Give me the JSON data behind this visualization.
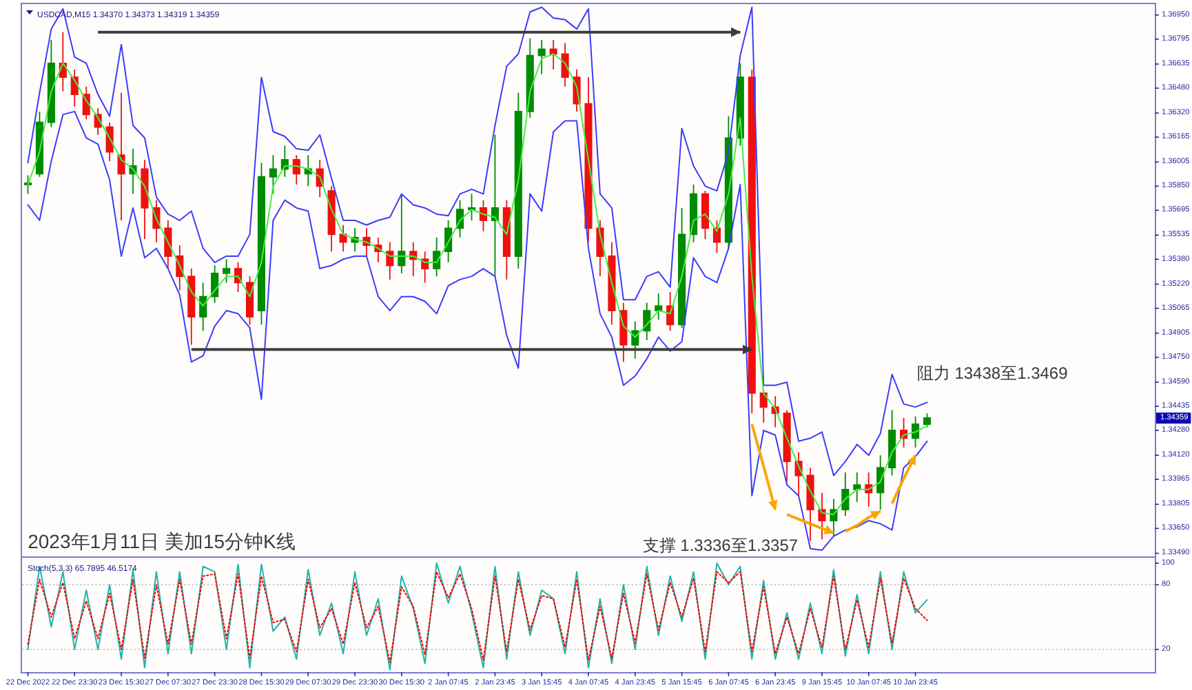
{
  "chart_data": [
    {
      "type": "candlestick",
      "title": "USDCAD,M15 1.34370 1.34373 1.34319 1.34359",
      "annotations": [
        "2023年1月11日 美加15分钟K线",
        "支撑 1.3336至1.3357",
        "阻力 13438至1.3469",
        {
          "text": "1.34359",
          "y": 1.34359
        }
      ],
      "categories": [
        null,
        null,
        null,
        null,
        null,
        null,
        null,
        null,
        null,
        null,
        null,
        null,
        null,
        null,
        null,
        null,
        null,
        null,
        null,
        null,
        null,
        null,
        null,
        null,
        null,
        null,
        null,
        null,
        null,
        null,
        null,
        null,
        null,
        null,
        null,
        null,
        null,
        null,
        null,
        null,
        null,
        null,
        null,
        null,
        null,
        null,
        null,
        null,
        null,
        null,
        null,
        null,
        null,
        null,
        null,
        null,
        null,
        null,
        null,
        null,
        null,
        null,
        null,
        null,
        null,
        null,
        null,
        null,
        null,
        null,
        null,
        null,
        null,
        null,
        null,
        null,
        null,
        null,
        null,
        null,
        null,
        null,
        null,
        null,
        null,
        null,
        null,
        null,
        null,
        null,
        null,
        null,
        null,
        null,
        null,
        null,
        null
      ],
      "ohlc": [
        [
          1.3586,
          1.3592,
          1.358,
          1.3587
        ],
        [
          1.3593,
          1.3633,
          1.3591,
          1.3626
        ],
        [
          1.3626,
          1.3679,
          1.3623,
          1.3664
        ],
        [
          1.3664,
          1.3684,
          1.3646,
          1.3655
        ],
        [
          1.3655,
          1.366,
          1.3636,
          1.3644
        ],
        [
          1.3644,
          1.3649,
          1.3628,
          1.3631
        ],
        [
          1.3631,
          1.3635,
          1.3618,
          1.3623
        ],
        [
          1.3623,
          1.3626,
          1.3601,
          1.3607
        ],
        [
          1.3605,
          1.3645,
          1.3563,
          1.3593
        ],
        [
          1.3593,
          1.3609,
          1.358,
          1.3598
        ],
        [
          1.3596,
          1.3602,
          1.3551,
          1.3571
        ],
        [
          1.3571,
          1.3576,
          1.3549,
          1.3558
        ],
        [
          1.3558,
          1.3563,
          1.3532,
          1.354
        ],
        [
          1.354,
          1.3547,
          1.3518,
          1.3527
        ],
        [
          1.3527,
          1.3532,
          1.3483,
          1.3501
        ],
        [
          1.3501,
          1.3523,
          1.3492,
          1.3514
        ],
        [
          1.3514,
          1.3534,
          1.351,
          1.3529
        ],
        [
          1.3529,
          1.3538,
          1.3523,
          1.3532
        ],
        [
          1.3532,
          1.3536,
          1.3517,
          1.3523
        ],
        [
          1.3523,
          1.3527,
          1.3496,
          1.3501
        ],
        [
          1.3505,
          1.36,
          1.3496,
          1.3591
        ],
        [
          1.3591,
          1.3605,
          1.358,
          1.3596
        ],
        [
          1.3596,
          1.3611,
          1.3591,
          1.3602
        ],
        [
          1.3602,
          1.3605,
          1.3586,
          1.3593
        ],
        [
          1.3593,
          1.3605,
          1.3585,
          1.3596
        ],
        [
          1.3596,
          1.3602,
          1.3578,
          1.3585
        ],
        [
          1.3582,
          1.3585,
          1.3543,
          1.3554
        ],
        [
          1.3554,
          1.356,
          1.3543,
          1.3549
        ],
        [
          1.3549,
          1.3558,
          1.3543,
          1.3552
        ],
        [
          1.3552,
          1.3558,
          1.354,
          1.3547
        ],
        [
          1.3547,
          1.3552,
          1.3536,
          1.3543
        ],
        [
          1.3543,
          1.3549,
          1.3525,
          1.3534
        ],
        [
          1.3534,
          1.358,
          1.3529,
          1.3543
        ],
        [
          1.3543,
          1.3549,
          1.3527,
          1.3538
        ],
        [
          1.3538,
          1.3543,
          1.3523,
          1.3532
        ],
        [
          1.3532,
          1.3552,
          1.3527,
          1.3543
        ],
        [
          1.3543,
          1.3563,
          1.3536,
          1.3558
        ],
        [
          1.3558,
          1.3576,
          1.3552,
          1.357
        ],
        [
          1.357,
          1.358,
          1.3563,
          1.3571
        ],
        [
          1.3571,
          1.3576,
          1.3556,
          1.3563
        ],
        [
          1.3563,
          1.3618,
          1.3527,
          1.3571
        ],
        [
          1.3571,
          1.3576,
          1.3525,
          1.354
        ],
        [
          1.354,
          1.3645,
          1.3532,
          1.3633
        ],
        [
          1.3633,
          1.368,
          1.3629,
          1.3669
        ],
        [
          1.3669,
          1.3679,
          1.3657,
          1.3673
        ],
        [
          1.3673,
          1.3679,
          1.366,
          1.367
        ],
        [
          1.367,
          1.3677,
          1.3649,
          1.3655
        ],
        [
          1.3655,
          1.366,
          1.3633,
          1.3638
        ],
        [
          1.3638,
          1.3655,
          1.3549,
          1.3558
        ],
        [
          1.3558,
          1.3563,
          1.3527,
          1.354
        ],
        [
          1.354,
          1.3549,
          1.3496,
          1.3505
        ],
        [
          1.3505,
          1.351,
          1.3472,
          1.3483
        ],
        [
          1.3483,
          1.3498,
          1.3474,
          1.3492
        ],
        [
          1.3492,
          1.351,
          1.3486,
          1.3505
        ],
        [
          1.3505,
          1.3516,
          1.3499,
          1.3508
        ],
        [
          1.3508,
          1.3517,
          1.3492,
          1.3496
        ],
        [
          1.3496,
          1.3571,
          1.3494,
          1.3554
        ],
        [
          1.3554,
          1.3586,
          1.3549,
          1.358
        ],
        [
          1.358,
          1.3582,
          1.3551,
          1.3558
        ],
        [
          1.3558,
          1.3563,
          1.3542,
          1.3549
        ],
        [
          1.3549,
          1.363,
          1.3545,
          1.3616
        ],
        [
          1.3616,
          1.3664,
          1.3611,
          1.3655
        ],
        [
          1.3655,
          1.366,
          1.3439,
          1.3452
        ],
        [
          1.3452,
          1.3454,
          1.3433,
          1.3443
        ],
        [
          1.3443,
          1.345,
          1.343,
          1.3439
        ],
        [
          1.3439,
          1.3441,
          1.3395,
          1.3408
        ],
        [
          1.3408,
          1.3414,
          1.3386,
          1.3399
        ],
        [
          1.3399,
          1.3404,
          1.3357,
          1.3377
        ],
        [
          1.3377,
          1.3388,
          1.3358,
          1.337
        ],
        [
          1.337,
          1.3384,
          1.336,
          1.3377
        ],
        [
          1.3377,
          1.3401,
          1.3373,
          1.339
        ],
        [
          1.339,
          1.3401,
          1.3382,
          1.3393
        ],
        [
          1.3393,
          1.3401,
          1.3379,
          1.3388
        ],
        [
          1.3388,
          1.3412,
          1.3377,
          1.3404
        ],
        [
          1.3404,
          1.3441,
          1.3399,
          1.3428
        ],
        [
          1.3428,
          1.3436,
          1.3417,
          1.3423
        ],
        [
          1.3423,
          1.3437,
          1.3417,
          1.3432
        ],
        [
          1.3432,
          1.3439,
          1.343,
          1.3436
        ],
        null,
        null,
        null,
        null,
        null,
        null,
        null,
        null,
        null,
        null,
        null,
        null,
        null,
        null,
        null,
        null,
        null,
        null,
        null
      ],
      "colors": [
        "#008c00",
        "#008c00",
        "#008c00",
        "#f01010",
        "#f01010",
        "#f01010",
        "#f01010",
        "#f01010",
        "#f01010",
        "#008c00",
        "#f01010",
        "#f01010",
        "#f01010",
        "#f01010",
        "#f01010",
        "#008c00",
        "#008c00",
        "#008c00",
        "#f01010",
        "#f01010",
        "#008c00",
        "#008c00",
        "#008c00",
        "#f01010",
        "#008c00",
        "#f01010",
        "#f01010",
        "#f01010",
        "#008c00",
        "#f01010",
        "#f01010",
        "#f01010",
        "#008c00",
        "#f01010",
        "#f01010",
        "#008c00",
        "#008c00",
        "#008c00",
        "#008c00",
        "#f01010",
        "#008c00",
        "#f01010",
        "#008c00",
        "#008c00",
        "#008c00",
        "#f01010",
        "#f01010",
        "#f01010",
        "#f01010",
        "#f01010",
        "#f01010",
        "#f01010",
        "#008c00",
        "#008c00",
        "#008c00",
        "#f01010",
        "#008c00",
        "#008c00",
        "#f01010",
        "#f01010",
        "#008c00",
        "#008c00",
        "#f01010",
        "#f01010",
        "#f01010",
        "#f01010",
        "#f01010",
        "#f01010",
        "#f01010",
        "#008c00",
        "#008c00",
        "#008c00",
        "#f01010",
        "#008c00",
        "#008c00",
        "#f01010",
        "#008c00",
        "#008c00",
        null,
        null,
        null,
        null,
        null,
        null,
        null,
        null,
        null,
        null,
        null,
        null,
        null,
        null,
        null,
        null,
        null,
        null,
        null
      ],
      "series": [
        {
          "type": "line",
          "color": "#3b3bff",
          "values": [
            1.36,
            1.3645,
            1.3686,
            1.3699,
            1.3668,
            1.3664,
            1.3644,
            1.363,
            1.3676,
            1.3624,
            1.3616,
            1.3578,
            1.3567,
            1.3563,
            1.3569,
            1.3545,
            1.3536,
            1.354,
            1.354,
            1.3554,
            1.3655,
            1.362,
            1.3617,
            1.3609,
            1.3608,
            1.3618,
            1.359,
            1.3563,
            1.3563,
            1.356,
            1.3563,
            1.3565,
            1.358,
            1.3573,
            1.3571,
            1.3567,
            1.3566,
            1.358,
            1.3583,
            1.358,
            1.3624,
            1.3662,
            1.367,
            1.3697,
            1.37,
            1.3693,
            1.3692,
            1.3686,
            1.3699,
            1.358,
            1.3571,
            1.3512,
            1.3512,
            1.3527,
            1.353,
            1.352,
            1.3622,
            1.3598,
            1.3585,
            1.3582,
            1.3607,
            1.3669,
            1.37,
            1.3457,
            1.3457,
            1.3459,
            1.3421,
            1.3423,
            1.3427,
            1.3399,
            1.3408,
            1.3419,
            1.3412,
            1.3426,
            1.3464,
            1.3445,
            1.3443,
            1.3446,
            null,
            null,
            null,
            null,
            null,
            null,
            null,
            null,
            null,
            null,
            null,
            null,
            null,
            null,
            null,
            null,
            null,
            null,
            null
          ]
        },
        {
          "type": "line",
          "color": "#3b3bff",
          "values": [
            1.3573,
            1.3563,
            1.3601,
            1.3631,
            1.3633,
            1.3616,
            1.3612,
            1.3589,
            1.354,
            1.3571,
            1.3539,
            1.3545,
            1.3532,
            1.3515,
            1.3472,
            1.3476,
            1.3495,
            1.3505,
            1.3503,
            1.3494,
            1.3448,
            1.3563,
            1.3576,
            1.3571,
            1.3569,
            1.3532,
            1.3534,
            1.3538,
            1.354,
            1.354,
            1.3514,
            1.3505,
            1.3514,
            1.3514,
            1.3511,
            1.3503,
            1.3521,
            1.3525,
            1.3527,
            1.3532,
            1.3527,
            1.3489,
            1.3468,
            1.358,
            1.3569,
            1.362,
            1.3627,
            1.3627,
            1.3545,
            1.3503,
            1.3488,
            1.3457,
            1.3463,
            1.3474,
            1.3488,
            1.3479,
            1.3485,
            1.3539,
            1.3527,
            1.3523,
            1.3545,
            1.3586,
            1.3386,
            1.3428,
            1.3425,
            1.3393,
            1.3386,
            1.3352,
            1.3351,
            1.336,
            1.3364,
            1.3366,
            1.337,
            1.3368,
            1.3364,
            1.3404,
            1.3411,
            1.3421,
            null,
            null,
            null,
            null,
            null,
            null,
            null,
            null,
            null,
            null,
            null,
            null,
            null,
            null,
            null,
            null,
            null,
            null,
            null
          ]
        },
        {
          "type": "line",
          "color": "#44ee44",
          "values": [
            1.3586,
            1.3607,
            1.3646,
            1.3664,
            1.3653,
            1.364,
            1.3629,
            1.3616,
            1.3602,
            1.3596,
            1.3585,
            1.3564,
            1.3549,
            1.3534,
            1.3517,
            1.3508,
            1.3518,
            1.3527,
            1.3527,
            1.3514,
            1.3536,
            1.3585,
            1.3598,
            1.3598,
            1.3596,
            1.3591,
            1.357,
            1.3554,
            1.3551,
            1.3549,
            1.3545,
            1.354,
            1.354,
            1.354,
            1.3536,
            1.3536,
            1.3549,
            1.3563,
            1.357,
            1.3567,
            1.3565,
            1.3554,
            1.3589,
            1.3646,
            1.3667,
            1.367,
            1.3664,
            1.3649,
            1.3602,
            1.3554,
            1.3523,
            1.3495,
            1.3488,
            1.3496,
            1.3505,
            1.3503,
            1.3527,
            1.3563,
            1.3567,
            1.3556,
            1.358,
            1.3629,
            1.3527,
            1.3452,
            1.3442,
            1.3423,
            1.3405,
            1.3389,
            1.3375,
            1.3374,
            1.3384,
            1.339,
            1.339,
            1.3395,
            1.3414,
            1.3425,
            1.3427,
            1.3431,
            null,
            null,
            null,
            null,
            null,
            null,
            null,
            null,
            null,
            null,
            null,
            null,
            null,
            null,
            null,
            null,
            null,
            null,
            null
          ]
        },
        {
          "type": "line",
          "color": "#3c3c3c",
          "values": [
            null,
            null,
            null,
            null,
            null,
            null,
            1.3684,
            1.3684,
            1.3684,
            1.3684,
            1.3684,
            1.3684,
            1.3684,
            1.3684,
            1.3684,
            1.3684,
            1.3684,
            1.3684,
            1.3684,
            1.3684,
            1.3684,
            1.3684,
            1.3684,
            1.3684,
            1.3684,
            1.3684,
            1.3684,
            1.3684,
            1.3684,
            1.3684,
            1.3684,
            1.3684,
            1.3684,
            1.3684,
            1.3684,
            1.3684,
            1.3684,
            1.3684,
            1.3684,
            1.3684,
            1.3684,
            1.3684,
            1.3684,
            1.3684,
            1.3684,
            1.3684,
            1.3684,
            1.3684,
            1.3684,
            1.3684,
            1.3684,
            1.3684,
            1.3684,
            1.3684,
            1.3684,
            1.3684,
            1.3684,
            1.3684,
            1.3684,
            1.3684,
            1.3684,
            1.3684,
            null,
            null,
            null,
            null,
            null,
            null,
            null,
            null,
            null,
            null,
            null,
            null,
            null,
            null,
            null,
            null,
            null,
            null,
            null,
            null,
            null,
            null,
            null,
            null,
            null,
            null,
            null,
            null,
            null,
            null,
            null,
            null,
            null,
            null,
            null
          ]
        },
        {
          "type": "line",
          "color": "#3c3c3c",
          "values": [
            null,
            null,
            null,
            null,
            null,
            null,
            null,
            null,
            null,
            null,
            null,
            null,
            null,
            null,
            1.348,
            1.348,
            1.348,
            1.348,
            1.348,
            1.348,
            1.348,
            1.348,
            1.348,
            1.348,
            1.348,
            1.348,
            1.348,
            1.348,
            1.348,
            1.348,
            1.348,
            1.348,
            1.348,
            1.348,
            1.348,
            1.348,
            1.348,
            1.348,
            1.348,
            1.348,
            1.348,
            1.348,
            1.348,
            1.348,
            1.348,
            1.348,
            1.348,
            1.348,
            1.348,
            1.348,
            1.348,
            1.348,
            1.348,
            1.348,
            1.348,
            1.348,
            1.348,
            1.348,
            1.348,
            1.348,
            1.348,
            1.348,
            1.348,
            null,
            null,
            null,
            null,
            null,
            null,
            null,
            null,
            null,
            null,
            null,
            null,
            null,
            null,
            null,
            null,
            null,
            null,
            null,
            null,
            null,
            null,
            null,
            null,
            null,
            null,
            null,
            null,
            null,
            null,
            null,
            null,
            null,
            null
          ]
        },
        {
          "type": "line",
          "color": "#f9a602",
          "values": [
            null,
            null,
            null,
            null,
            null,
            null,
            null,
            null,
            null,
            null,
            null,
            null,
            null,
            null,
            null,
            null,
            null,
            null,
            null,
            null,
            null,
            null,
            null,
            null,
            null,
            null,
            null,
            null,
            null,
            null,
            null,
            null,
            null,
            null,
            null,
            null,
            null,
            null,
            null,
            null,
            null,
            null,
            null,
            null,
            null,
            null,
            null,
            null,
            null,
            null,
            null,
            null,
            null,
            null,
            null,
            null,
            null,
            null,
            null,
            null,
            null,
            null,
            1.3432,
            1.3405,
            1.3377,
            null,
            null,
            null,
            null,
            null,
            null,
            null,
            null,
            null,
            null,
            null,
            null,
            null,
            null,
            null,
            null,
            null,
            null,
            null,
            null,
            null,
            null,
            null,
            null,
            null,
            null,
            null,
            null,
            null,
            null,
            null,
            null
          ]
        },
        {
          "type": "line",
          "color": "#f9a602",
          "values": [
            null,
            null,
            null,
            null,
            null,
            null,
            null,
            null,
            null,
            null,
            null,
            null,
            null,
            null,
            null,
            null,
            null,
            null,
            null,
            null,
            null,
            null,
            null,
            null,
            null,
            null,
            null,
            null,
            null,
            null,
            null,
            null,
            null,
            null,
            null,
            null,
            null,
            null,
            null,
            null,
            null,
            null,
            null,
            null,
            null,
            null,
            null,
            null,
            null,
            null,
            null,
            null,
            null,
            null,
            null,
            null,
            null,
            null,
            null,
            null,
            null,
            null,
            null,
            null,
            null,
            1.3374,
            1.3371,
            1.3368,
            1.3365,
            1.3362,
            null,
            null,
            null,
            null,
            null,
            null,
            null,
            null,
            null,
            null,
            null,
            null,
            null,
            null,
            null,
            null,
            null,
            null,
            null,
            null,
            null,
            null,
            null,
            null,
            null,
            null,
            null
          ]
        },
        {
          "type": "line",
          "color": "#f9a602",
          "values": [
            null,
            null,
            null,
            null,
            null,
            null,
            null,
            null,
            null,
            null,
            null,
            null,
            null,
            null,
            null,
            null,
            null,
            null,
            null,
            null,
            null,
            null,
            null,
            null,
            null,
            null,
            null,
            null,
            null,
            null,
            null,
            null,
            null,
            null,
            null,
            null,
            null,
            null,
            null,
            null,
            null,
            null,
            null,
            null,
            null,
            null,
            null,
            null,
            null,
            null,
            null,
            null,
            null,
            null,
            null,
            null,
            null,
            null,
            null,
            null,
            null,
            null,
            null,
            null,
            null,
            null,
            null,
            null,
            null,
            null,
            1.3363,
            1.3367,
            1.3372,
            1.3376,
            null,
            null,
            null,
            null,
            null,
            null,
            null,
            null,
            null,
            null,
            null,
            null,
            null,
            null,
            null,
            null,
            null,
            null,
            null,
            null,
            null,
            null,
            null
          ]
        },
        {
          "type": "line",
          "color": "#f9a602",
          "values": [
            null,
            null,
            null,
            null,
            null,
            null,
            null,
            null,
            null,
            null,
            null,
            null,
            null,
            null,
            null,
            null,
            null,
            null,
            null,
            null,
            null,
            null,
            null,
            null,
            null,
            null,
            null,
            null,
            null,
            null,
            null,
            null,
            null,
            null,
            null,
            null,
            null,
            null,
            null,
            null,
            null,
            null,
            null,
            null,
            null,
            null,
            null,
            null,
            null,
            null,
            null,
            null,
            null,
            null,
            null,
            null,
            null,
            null,
            null,
            null,
            null,
            null,
            null,
            null,
            null,
            null,
            null,
            null,
            null,
            null,
            null,
            null,
            null,
            null,
            1.3381,
            1.3397,
            1.3412,
            null,
            null,
            null,
            null,
            null,
            null,
            null,
            null,
            null,
            null,
            null,
            null,
            null,
            null,
            null,
            null,
            null,
            null,
            null,
            null
          ]
        }
      ],
      "ylim": [
        1.3347,
        1.3702
      ],
      "yticks": [
        {
          "value": 1.3695,
          "label": "1.36950"
        },
        1.36795,
        1.36635,
        {
          "value": 1.3648,
          "label": "1.36480"
        },
        {
          "value": 1.3632,
          "label": "1.36320"
        },
        1.36165,
        1.36005,
        {
          "value": 1.3585,
          "label": "1.35850"
        },
        1.35695,
        1.35535,
        {
          "value": 1.3538,
          "label": "1.35380"
        },
        {
          "value": 1.3522,
          "label": "1.35220"
        },
        1.35065,
        1.34905,
        {
          "value": 1.3475,
          "label": "1.34750"
        },
        {
          "value": 1.3459,
          "label": "1.34590"
        },
        1.34435,
        {
          "value": 1.3428,
          "label": "1.34280"
        },
        {
          "value": 1.3412,
          "label": "1.34120"
        },
        1.33965,
        1.33805,
        {
          "value": 1.3365,
          "label": "1.33650"
        },
        {
          "value": 1.3349,
          "label": "1.33490"
        }
      ]
    },
    {
      "type": "line",
      "title": "Stoch(5,3,3) 65.7895 46.5174",
      "categories": [
        "22 Dec 2022",
        null,
        null,
        null,
        "22 Dec 23:30",
        null,
        null,
        null,
        "23 Dec 15:30",
        null,
        null,
        null,
        "27 Dec 07:30",
        null,
        null,
        null,
        "27 Dec 23:30",
        null,
        null,
        null,
        "28 Dec 15:30",
        null,
        null,
        null,
        "29 Dec 07:30",
        null,
        null,
        null,
        "29 Dec 23:30",
        null,
        null,
        null,
        "30 Dec 15:30",
        null,
        null,
        null,
        "2 Jan 07:45",
        null,
        null,
        null,
        "2 Jan 23:45",
        null,
        null,
        null,
        "3 Jan 15:45",
        null,
        null,
        null,
        "4 Jan 07:45",
        null,
        null,
        null,
        "4 Jan 23:45",
        null,
        null,
        null,
        "5 Jan 15:45",
        null,
        null,
        null,
        "6 Jan 07:45",
        null,
        null,
        null,
        "6 Jan 23:45",
        null,
        null,
        null,
        "9 Jan 15:45",
        null,
        null,
        null,
        "10 Jan 07:45",
        null,
        null,
        null,
        "10 Jan 23:45",
        null,
        null,
        null,
        null,
        null,
        null,
        null,
        null,
        null,
        null,
        null,
        null,
        null,
        null,
        null,
        null,
        null,
        null,
        null,
        null
      ],
      "series": [
        {
          "color": "#20b2aa",
          "values": [
            20,
            97,
            41,
            92,
            20,
            75,
            20,
            80,
            11,
            94,
            3,
            92,
            16,
            92,
            16,
            97,
            92,
            20,
            99,
            3,
            99,
            37,
            50,
            11,
            94,
            33,
            63,
            16,
            92,
            33,
            67,
            1,
            88,
            58,
            7,
            100,
            63,
            97,
            54,
            3,
            97,
            11,
            92,
            33,
            75,
            67,
            16,
            92,
            3,
            67,
            7,
            80,
            20,
            97,
            33,
            88,
            46,
            92,
            11,
            100,
            80,
            97,
            11,
            84,
            11,
            54,
            11,
            63,
            16,
            94,
            14,
            71,
            16,
            92,
            20,
            92,
            54,
            66,
            null,
            null,
            null,
            null,
            null,
            null,
            null,
            null,
            null,
            null,
            null,
            null,
            null,
            null,
            null,
            null,
            null,
            null,
            null
          ]
        },
        {
          "color": "#ff0000",
          "line_style": "dotted",
          "values": [
            25,
            85,
            50,
            82,
            30,
            65,
            30,
            72,
            20,
            85,
            12,
            80,
            25,
            85,
            25,
            88,
            90,
            30,
            90,
            12,
            88,
            45,
            48,
            18,
            85,
            40,
            58,
            25,
            82,
            40,
            60,
            8,
            78,
            60,
            15,
            92,
            68,
            90,
            58,
            10,
            88,
            18,
            85,
            38,
            70,
            67,
            22,
            85,
            10,
            60,
            12,
            72,
            26,
            90,
            38,
            82,
            50,
            86,
            18,
            92,
            82,
            92,
            18,
            78,
            16,
            50,
            16,
            58,
            22,
            88,
            20,
            66,
            22,
            86,
            26,
            86,
            58,
            47,
            null,
            null,
            null,
            null,
            null,
            null,
            null,
            null,
            null,
            null,
            null,
            null,
            null,
            null,
            null,
            null,
            null,
            null,
            null
          ]
        }
      ],
      "ylim": [
        -1,
        105
      ],
      "yticks": [
        100,
        80,
        20
      ],
      "ref_lines": [
        {
          "axis": "y",
          "value": 80,
          "color": "#c4c4c4",
          "line_style": "dotted"
        },
        {
          "axis": "y",
          "value": 20,
          "color": "#c4c4c4",
          "line_style": "dotted"
        }
      ]
    }
  ]
}
